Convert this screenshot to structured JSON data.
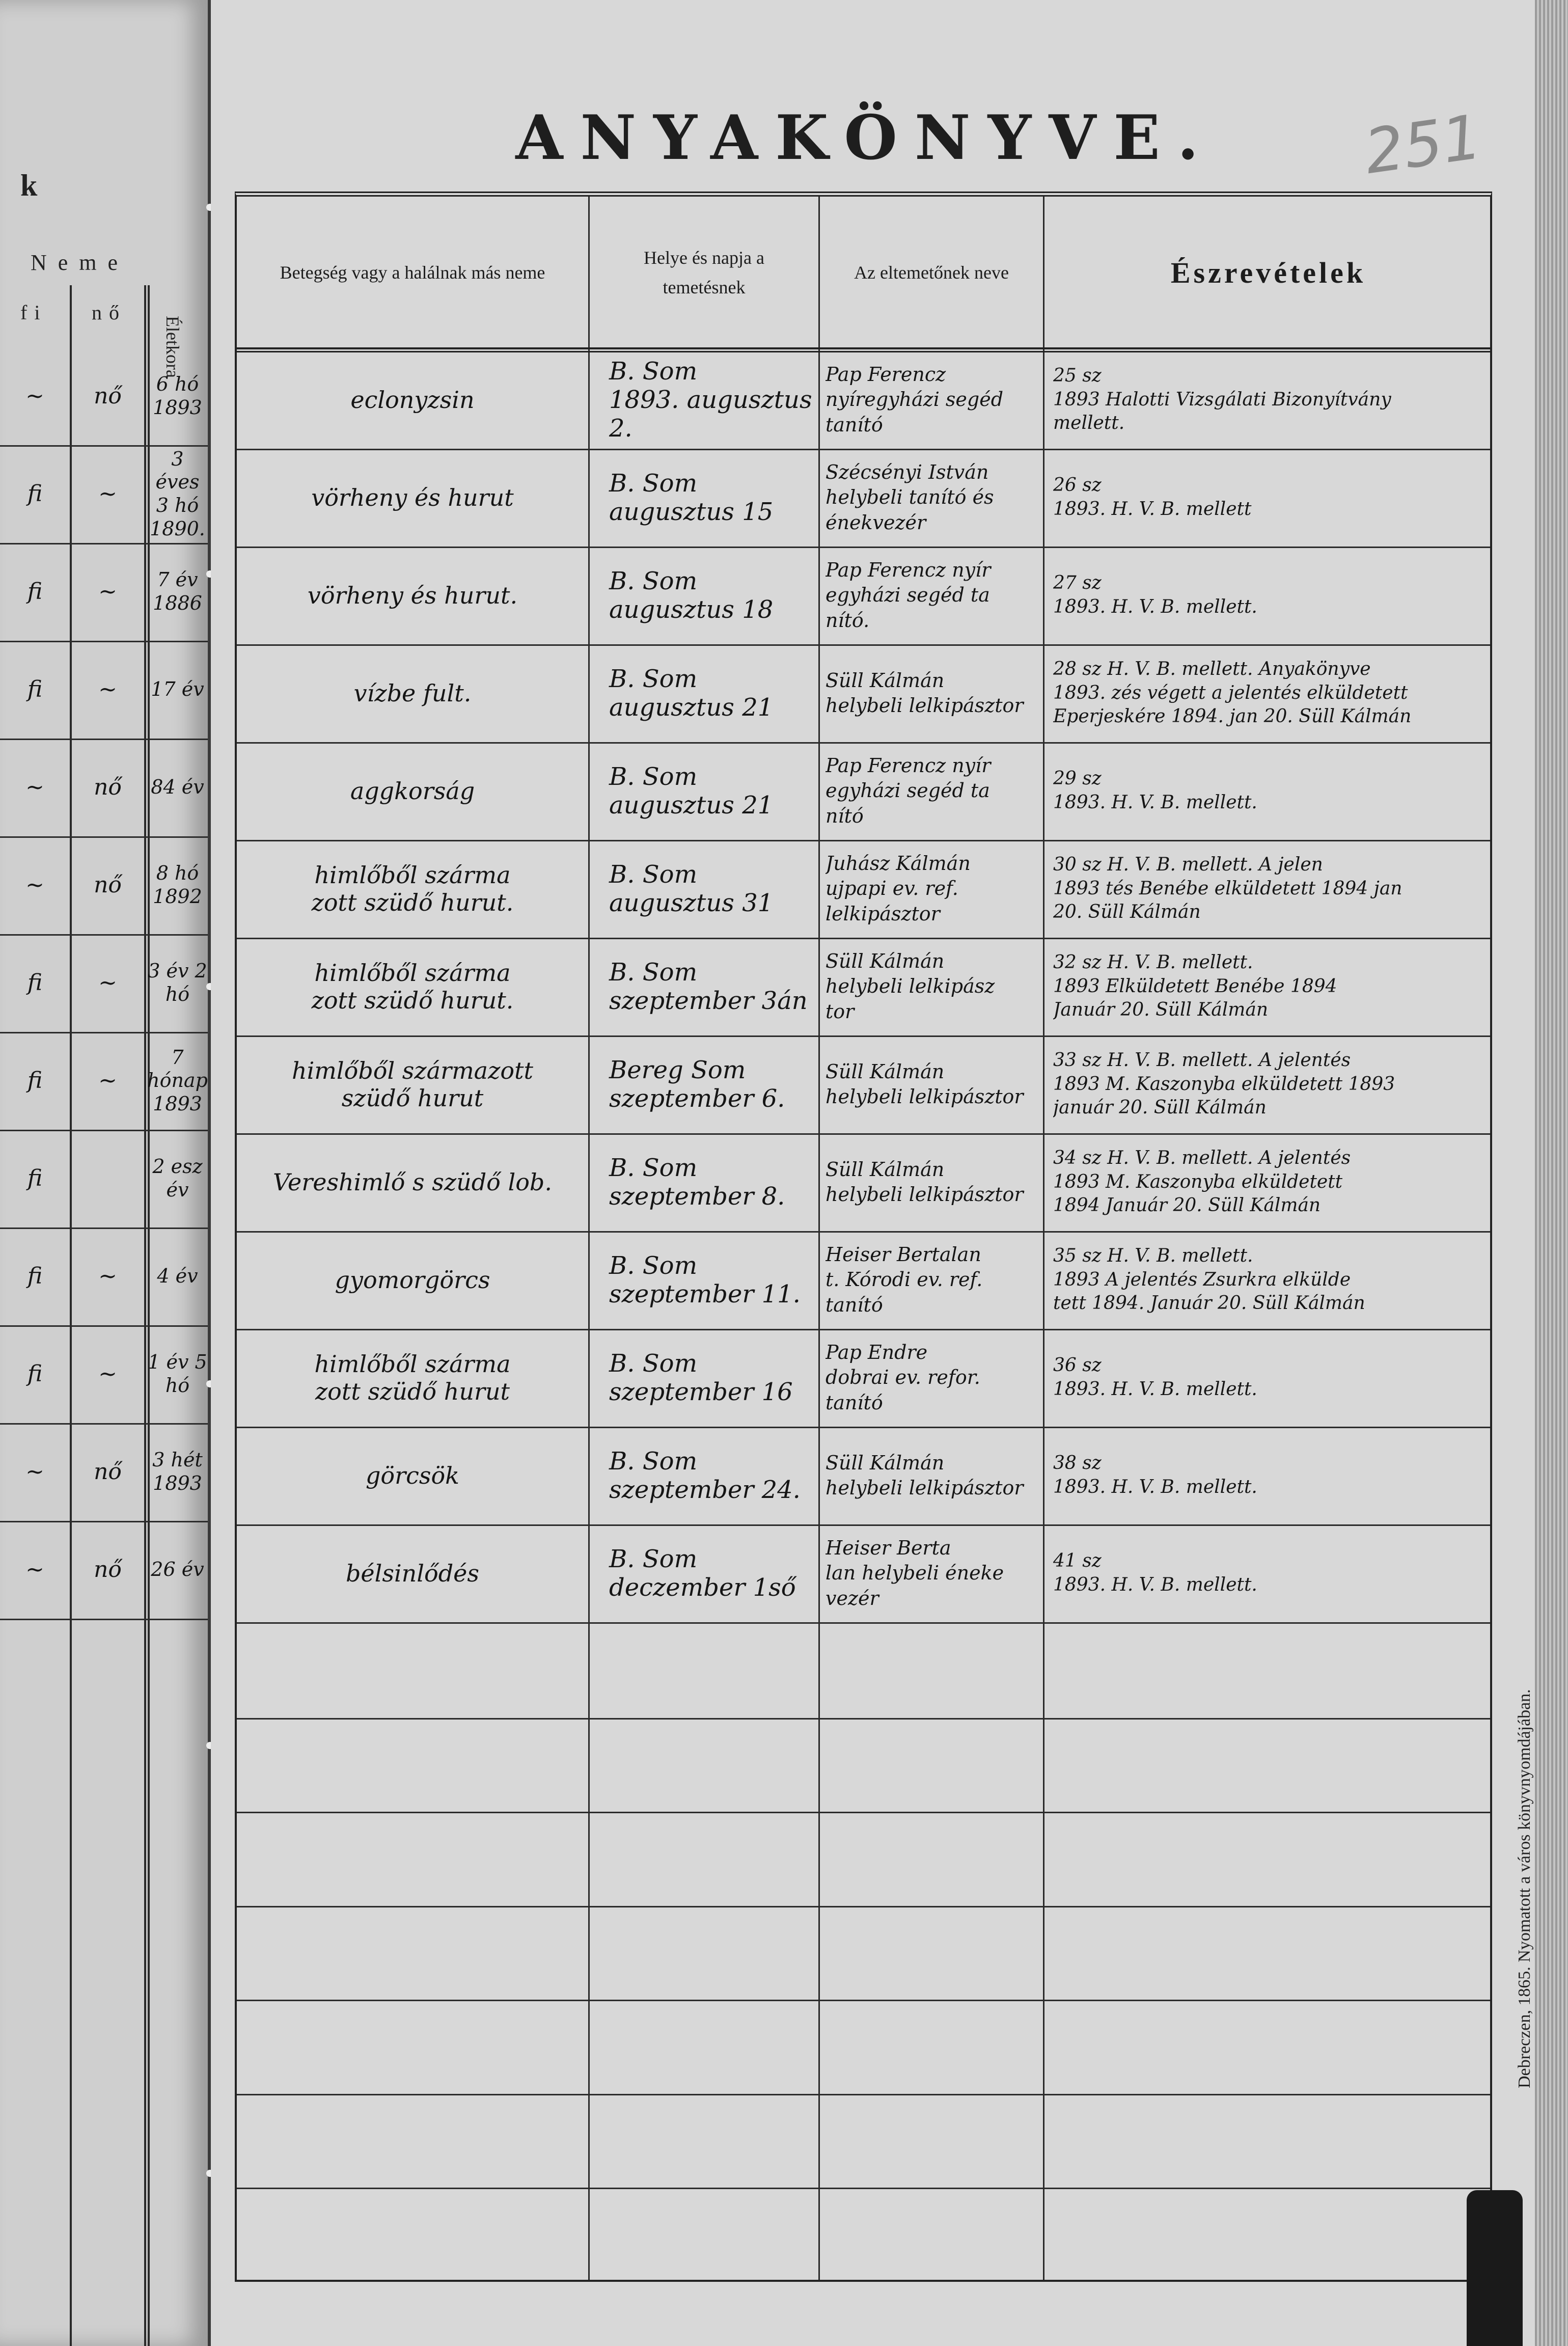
{
  "header": {
    "title": "ANYAKÖNYVE.",
    "page_number": "251"
  },
  "left_page": {
    "heading_fragment": "k",
    "sex_header": "Neme",
    "male_header": "fi",
    "female_header": "nő",
    "age_header": "Életkora",
    "rows": [
      {
        "male": "~",
        "female": "nő",
        "age": "6 hó\n1893"
      },
      {
        "male": "fi",
        "female": "~",
        "age": "3 éves\n3 hó\n1890."
      },
      {
        "male": "fi",
        "female": "~",
        "age": "7 év\n1886"
      },
      {
        "male": "fi",
        "female": "~",
        "age": "17 év"
      },
      {
        "male": "~",
        "female": "nő",
        "age": "84 év"
      },
      {
        "male": "~",
        "female": "nő",
        "age": "8 hó\n1892"
      },
      {
        "male": "fi",
        "female": "~",
        "age": "3 év 2 hó"
      },
      {
        "male": "fi",
        "female": "~",
        "age": "7 hónap\n1893"
      },
      {
        "male": "fi",
        "female": "",
        "age": "2 esz év"
      },
      {
        "male": "fi",
        "female": "~",
        "age": "4 év"
      },
      {
        "male": "fi",
        "female": "~",
        "age": "1 év 5\nhó"
      },
      {
        "male": "~",
        "female": "nő",
        "age": "3 hét\n1893"
      },
      {
        "male": "~",
        "female": "nő",
        "age": "26 év"
      }
    ]
  },
  "table": {
    "columns": [
      "Betegség vagy a halálnak más neme",
      "Helye és napja a temetésnek",
      "Az eltemetőnek neve",
      "Észrevételek"
    ],
    "rows": [
      {
        "cause": "eclonyzsin",
        "place": "B. Som\n1893. augusztus 2.",
        "name": "Pap Ferencz\nnyíregyházi segéd\ntanító",
        "remark": "25 sz\n1893  Halotti Vizsgálati Bizonyítvány\nmellett."
      },
      {
        "cause": "vörheny és hurut",
        "place": "B. Som\naugusztus 15",
        "name": "Szécsényi István\nhelybeli tanító és\nénekvezér",
        "remark": "26 sz\n1893.  H. V. B. mellett"
      },
      {
        "cause": "vörheny és hurut.",
        "place": "B. Som\naugusztus 18",
        "name": "Pap Ferencz nyír\negyházi segéd ta\nnító.",
        "remark": "27 sz\n1893.  H. V. B. mellett."
      },
      {
        "cause": "vízbe fult.",
        "place": "B. Som\naugusztus 21",
        "name": "Süll Kálmán\nhelybeli lelkipásztor",
        "remark": "28 sz  H. V. B. mellett. Anyakönyve\n1893. zés végett a jelentés elküldetett\nEperjeskére 1894. jan 20.  Süll Kálmán"
      },
      {
        "cause": "aggkorság",
        "place": "B. Som\naugusztus 21",
        "name": "Pap Ferencz nyír\negyházi segéd ta\nnító",
        "remark": "29 sz\n1893.  H. V. B. mellett."
      },
      {
        "cause": "himlőből szárma\nzott szüdő hurut.",
        "place": "B. Som\naugusztus 31",
        "name": "Juhász Kálmán\nujpapi ev. ref.\nlelkipásztor",
        "remark": "30 sz  H. V. B. mellett. A jelen\n1893 tés Benébe elküldetett 1894 jan\n20.  Süll Kálmán"
      },
      {
        "cause": "himlőből szárma\nzott szüdő hurut.",
        "place": "B. Som\nszeptember 3án",
        "name": "Süll Kálmán\nhelybeli lelkipász\ntor",
        "remark": "32 sz  H. V. B. mellett.\n1893 Elküldetett Benébe 1894\nJanuár 20. Süll Kálmán"
      },
      {
        "cause": "himlőből származott\nszüdő hurut",
        "place": "Bereg Som\nszeptember 6.",
        "name": "Süll Kálmán\nhelybeli lelkipásztor",
        "remark": "33 sz  H. V. B. mellett. A jelentés\n1893 M. Kaszonyba elküldetett 1893\njanuár 20.  Süll Kálmán"
      },
      {
        "cause": "Vereshimlő s szüdő lob.",
        "place": "B. Som\nszeptember 8.",
        "name": "Süll Kálmán\nhelybeli lelkipásztor",
        "remark": "34 sz  H. V. B. mellett. A jelentés\n1893 M. Kaszonyba elküldetett\n1894 Január 20.  Süll Kálmán"
      },
      {
        "cause": "gyomorgörcs",
        "place": "B. Som\nszeptember 11.",
        "name": "Heiser Bertalan\nt. Kórodi ev. ref.\ntanító",
        "remark": "35 sz  H. V. B. mellett.\n1893 A jelentés Zsurkra elkülde\ntett 1894. Január 20.  Süll Kálmán"
      },
      {
        "cause": "himlőből szárma\nzott szüdő hurut",
        "place": "B. Som\nszeptember 16",
        "name": "Pap Endre\ndobrai ev. refor.\ntanító",
        "remark": "36 sz\n1893.  H. V. B. mellett."
      },
      {
        "cause": "görcsök",
        "place": "B. Som\nszeptember 24.",
        "name": "Süll Kálmán\nhelybeli lelkipásztor",
        "remark": "38 sz\n1893.  H. V. B. mellett."
      },
      {
        "cause": "bélsinlődés",
        "place": "B. Som\ndeczember 1ső",
        "name": "Heiser Berta\nlan helybeli éneke\nvezér",
        "remark": "41 sz\n1893.  H. V. B. mellett."
      }
    ],
    "blank_rows": 7
  },
  "footer": {
    "printer_note": "Debreczen, 1865. Nyomatott a város könyvnyomdájában."
  }
}
